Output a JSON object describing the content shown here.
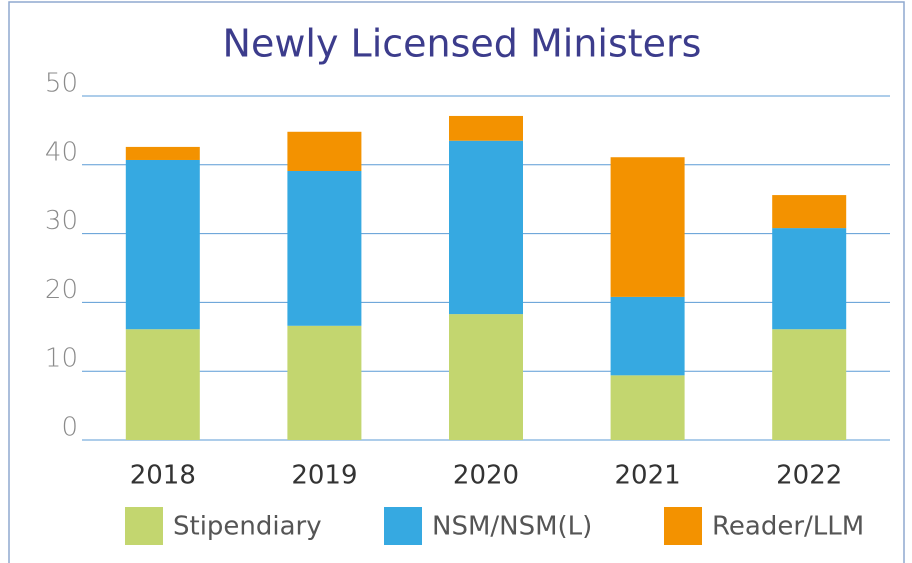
{
  "chart_data": {
    "type": "stacked_bar",
    "title": "Newly Licensed Ministers",
    "categories": [
      "2018",
      "2019",
      "2020",
      "2021",
      "2022"
    ],
    "series": [
      {
        "name": "Stipendiary",
        "color": "#c3d66f",
        "values": [
          16.1,
          16.6,
          18.3,
          9.4,
          16.1
        ]
      },
      {
        "name": "NSM/NSM(L)",
        "color": "#36a9e1",
        "values": [
          24.6,
          22.5,
          25.2,
          11.4,
          14.7
        ]
      },
      {
        "name": "Reader/LLM",
        "color": "#f39200",
        "values": [
          1.9,
          5.7,
          3.6,
          20.3,
          4.8
        ]
      }
    ],
    "ylim": [
      0,
      50
    ],
    "yticks": [
      0,
      10,
      20,
      30,
      40,
      50
    ],
    "grid": true,
    "legend": "bottom"
  }
}
